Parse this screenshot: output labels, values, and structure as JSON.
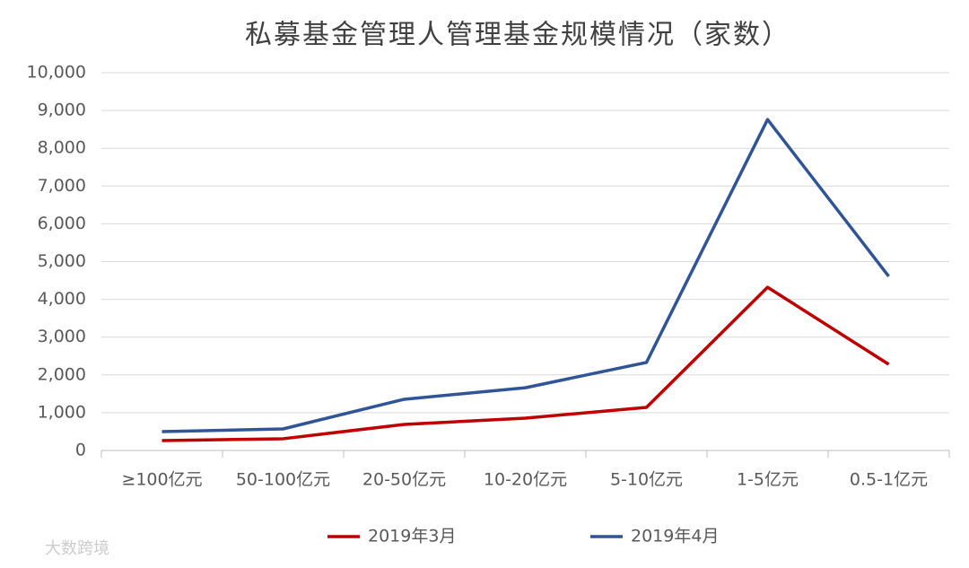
{
  "chart_data": {
    "type": "line",
    "title": "私募基金管理人管理基金规模情况（家数）",
    "categories": [
      "≥100亿元",
      "50-100亿元",
      "20-50亿元",
      "10-20亿元",
      "5-10亿元",
      "1-5亿元",
      "0.5-1亿元"
    ],
    "series": [
      {
        "name": "2019年3月",
        "color": "#c00000",
        "values": [
          260,
          310,
          690,
          855,
          1140,
          4320,
          2280
        ]
      },
      {
        "name": "2019年4月",
        "color": "#2f5597",
        "values": [
          500,
          570,
          1355,
          1660,
          2330,
          8760,
          4610
        ]
      }
    ],
    "ylim": [
      0,
      10000
    ],
    "yticks": [
      0,
      {
        "value": 1000,
        "label": "1,000"
      },
      {
        "value": 2000,
        "label": "2,000"
      },
      {
        "value": 3000,
        "label": "3,000"
      },
      {
        "value": 4000,
        "label": "4,000"
      },
      {
        "value": 5000,
        "label": "5,000"
      },
      {
        "value": 6000,
        "label": "6,000"
      },
      {
        "value": 7000,
        "label": "7,000"
      },
      {
        "value": 8000,
        "label": "8,000"
      },
      {
        "value": 9000,
        "label": "9,000"
      },
      {
        "value": 10000,
        "label": "10,000"
      }
    ],
    "grid": true,
    "legend": "bottom",
    "watermark": "大数跨境"
  }
}
